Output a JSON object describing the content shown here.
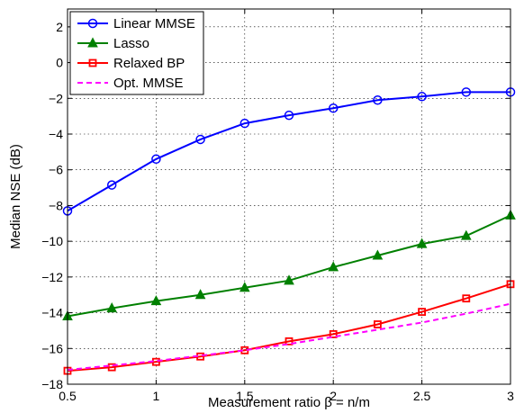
{
  "chart_data": {
    "type": "line",
    "xlabel": "Measurement ratio β = n/m",
    "ylabel": "Median NSE (dB)",
    "xlim": [
      0.5,
      3
    ],
    "ylim": [
      -18,
      3
    ],
    "xticks": [
      0.5,
      1,
      1.5,
      2,
      2.5,
      3
    ],
    "xtick_labels": [
      "0.5",
      "1",
      "1.5",
      "2",
      "2.5",
      "3"
    ],
    "yticks": [
      -18,
      -16,
      -14,
      -12,
      -10,
      -8,
      -6,
      -4,
      -2,
      0,
      2
    ],
    "ytick_labels": [
      "−18",
      "−16",
      "−14",
      "−12",
      "−10",
      "−8",
      "−6",
      "−4",
      "−2",
      "0",
      "2"
    ],
    "grid": true,
    "legend_position": "top-left",
    "series": [
      {
        "name": "Linear MMSE",
        "color": "#0000ff",
        "marker": "circle",
        "line_style": "solid",
        "x": [
          0.5,
          0.75,
          1.0,
          1.25,
          1.5,
          1.75,
          2.0,
          2.25,
          2.5,
          2.75,
          3.0
        ],
        "y": [
          -8.3,
          -6.85,
          -5.4,
          -4.3,
          -3.4,
          -2.95,
          -2.55,
          -2.1,
          -1.9,
          -1.65,
          -1.65
        ]
      },
      {
        "name": "Lasso",
        "color": "#008000",
        "marker": "triangle",
        "line_style": "solid",
        "x": [
          0.5,
          0.75,
          1.0,
          1.25,
          1.5,
          1.75,
          2.0,
          2.25,
          2.5,
          2.75,
          3.0
        ],
        "y": [
          -14.2,
          -13.75,
          -13.35,
          -13.0,
          -12.6,
          -12.2,
          -11.45,
          -10.8,
          -10.15,
          -9.7,
          -8.55
        ]
      },
      {
        "name": "Relaxed BP",
        "color": "#ff0000",
        "marker": "square",
        "line_style": "solid",
        "x": [
          0.5,
          0.75,
          1.0,
          1.25,
          1.5,
          1.75,
          2.0,
          2.25,
          2.5,
          2.75,
          3.0
        ],
        "y": [
          -17.25,
          -17.05,
          -16.75,
          -16.45,
          -16.1,
          -15.6,
          -15.2,
          -14.65,
          -13.95,
          -13.2,
          -12.4
        ]
      },
      {
        "name": "Opt. MMSE",
        "color": "#ff00ff",
        "marker": "none",
        "line_style": "dashed",
        "x": [
          0.5,
          0.75,
          1.0,
          1.25,
          1.5,
          1.75,
          2.0,
          2.25,
          2.5,
          2.75,
          3.0
        ],
        "y": [
          -17.2,
          -16.95,
          -16.7,
          -16.4,
          -16.1,
          -15.75,
          -15.35,
          -14.95,
          -14.55,
          -14.05,
          -13.5
        ]
      }
    ]
  }
}
